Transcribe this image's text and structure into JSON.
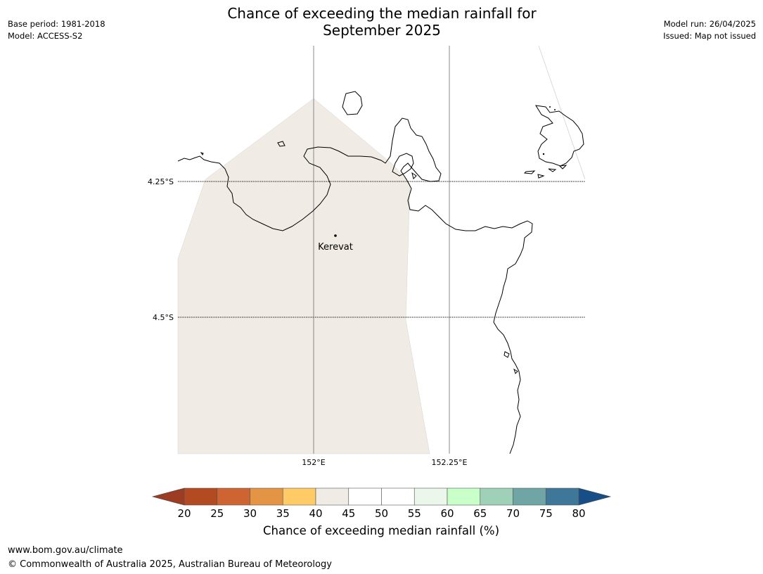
{
  "header": {
    "title_line1": "Chance of exceeding the median rainfall for",
    "title_line2": "September 2025",
    "base_period": "Base period: 1981-2018",
    "model": "Model: ACCESS-S2",
    "model_run": "Model run: 26/04/2025",
    "issued": "Issued: Map not issued"
  },
  "map": {
    "lat_labels": [
      "4.25°S",
      "4.5°S"
    ],
    "lon_labels": [
      "152°E",
      "152.25°E"
    ],
    "place": {
      "name": "Kerevat"
    },
    "forecast_fill_color": "#f0ebe4",
    "coastline_color": "#000000"
  },
  "colorbar": {
    "label": "Chance of exceeding median rainfall (%)",
    "ticks": [
      "20",
      "25",
      "30",
      "35",
      "40",
      "45",
      "50",
      "55",
      "60",
      "65",
      "70",
      "75",
      "80"
    ],
    "under_color": "#9c3c22",
    "over_color": "#184e87",
    "colors": [
      "#b24a22",
      "#cd6431",
      "#e39444",
      "#fecb66",
      "#f0ebe4",
      "#ffffff",
      "#ffffff",
      "#ebf7ea",
      "#c9ffc9",
      "#9ed1b8",
      "#6fa5a4",
      "#3e7797"
    ]
  },
  "footer": {
    "url": "www.bom.gov.au/climate",
    "copyright": "© Commonwealth of Australia 2025, Australian Bureau of Meteorology"
  }
}
